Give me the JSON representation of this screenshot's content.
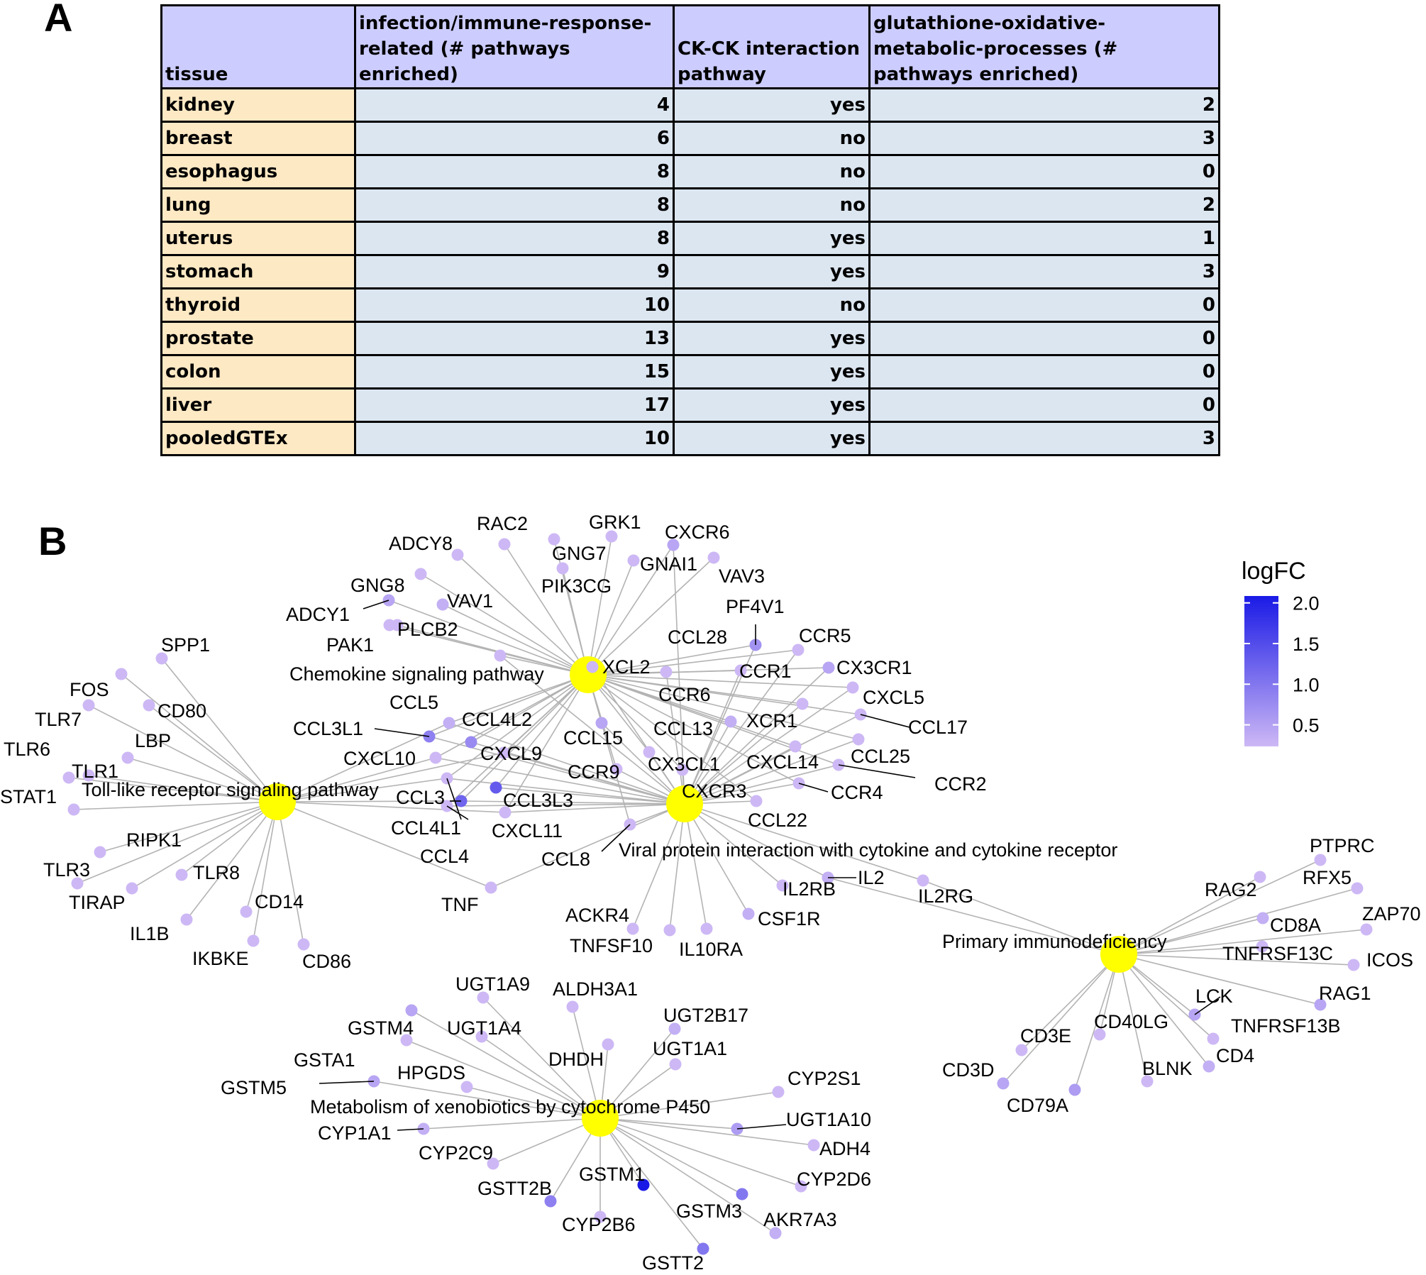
{
  "panel_a": {
    "letter": "A",
    "headers": [
      "tissue",
      "infection/immune-response-related (# pathways enriched)",
      "CK-CK  interaction pathway",
      "glutathione-oxidative-metabolic-processes (# pathways enriched)"
    ],
    "rows": [
      {
        "tissue": "kidney",
        "infection": "4",
        "ckck": "yes",
        "glutathione": "2"
      },
      {
        "tissue": "breast",
        "infection": "6",
        "ckck": "no",
        "glutathione": "3"
      },
      {
        "tissue": "esophagus",
        "infection": "8",
        "ckck": "no",
        "glutathione": "0"
      },
      {
        "tissue": "lung",
        "infection": "8",
        "ckck": "no",
        "glutathione": "2"
      },
      {
        "tissue": "uterus",
        "infection": "8",
        "ckck": "yes",
        "glutathione": "1"
      },
      {
        "tissue": "stomach",
        "infection": "9",
        "ckck": "yes",
        "glutathione": "3"
      },
      {
        "tissue": "thyroid",
        "infection": "10",
        "ckck": "no",
        "glutathione": "0"
      },
      {
        "tissue": "prostate",
        "infection": "13",
        "ckck": "yes",
        "glutathione": "0"
      },
      {
        "tissue": "colon",
        "infection": "15",
        "ckck": "yes",
        "glutathione": "0"
      },
      {
        "tissue": "liver",
        "infection": "17",
        "ckck": "yes",
        "glutathione": "0"
      },
      {
        "tissue": "pooledGTEx",
        "infection": "10",
        "ckck": "yes",
        "glutathione": "3"
      }
    ]
  },
  "panel_b": {
    "letter": "B",
    "legend": {
      "title": "logFC",
      "ticks": [
        "2.0",
        "1.5",
        "1.0",
        "0.5"
      ],
      "color_low": "#cdb8f5",
      "color_high": "#1a1ae6"
    },
    "pathway_color": "#ffff00",
    "pathways": [
      {
        "id": "chemokine",
        "label": "Chemokine signaling pathway"
      },
      {
        "id": "tlr",
        "label": "Toll-like receptor signaling pathway"
      },
      {
        "id": "viral",
        "label": "Viral protein interaction with cytokine and cytokine receptor"
      },
      {
        "id": "pid",
        "label": "Primary immunodeficiency"
      },
      {
        "id": "xeno",
        "label": "Metabolism of xenobiotics by cytochrome P450"
      }
    ],
    "genes": [
      {
        "label": "ADCY8",
        "level": 0.3,
        "pathways": [
          "chemokine"
        ]
      },
      {
        "label": "RAC2",
        "level": 0.3,
        "pathways": [
          "chemokine"
        ]
      },
      {
        "label": "GRK1",
        "level": 0.3,
        "pathways": [
          "chemokine"
        ]
      },
      {
        "label": "CXCR6",
        "level": 0.5,
        "pathways": [
          "chemokine",
          "viral"
        ]
      },
      {
        "label": "GNG7",
        "level": 0.3,
        "pathways": [
          "chemokine"
        ]
      },
      {
        "label": "GNAI1",
        "level": 0.3,
        "pathways": [
          "chemokine"
        ]
      },
      {
        "label": "VAV3",
        "level": 0.3,
        "pathways": [
          "chemokine"
        ]
      },
      {
        "label": "GNG8",
        "level": 0.3,
        "pathways": [
          "chemokine"
        ]
      },
      {
        "label": "PIK3CG",
        "level": 0.3,
        "pathways": [
          "chemokine"
        ]
      },
      {
        "label": "VAV1",
        "level": 0.4,
        "pathways": [
          "chemokine"
        ]
      },
      {
        "label": "ADCY1",
        "level": 0.5,
        "pathways": [
          "chemokine"
        ]
      },
      {
        "label": "PLCB2",
        "level": 0.3,
        "pathways": [
          "chemokine"
        ]
      },
      {
        "label": "PAK1",
        "level": 0.3,
        "pathways": [
          "chemokine"
        ]
      },
      {
        "label": "PF4V1",
        "level": 0.7,
        "pathways": [
          "chemokine",
          "viral"
        ]
      },
      {
        "label": "CCL28",
        "level": 0.3,
        "pathways": [
          "chemokine",
          "viral"
        ]
      },
      {
        "label": "CCR5",
        "level": 0.3,
        "pathways": [
          "chemokine",
          "viral"
        ]
      },
      {
        "label": "XCL2",
        "level": 0.3,
        "pathways": [
          "chemokine",
          "viral"
        ]
      },
      {
        "label": "CCR1",
        "level": 0.3,
        "pathways": [
          "chemokine",
          "viral"
        ]
      },
      {
        "label": "CX3CR1",
        "level": 0.5,
        "pathways": [
          "chemokine",
          "viral"
        ]
      },
      {
        "label": "CCR6",
        "level": 0.3,
        "pathways": [
          "chemokine",
          "viral"
        ]
      },
      {
        "label": "CXCL5",
        "level": 0.3,
        "pathways": [
          "chemokine",
          "viral"
        ]
      },
      {
        "label": "CCL17",
        "level": 0.3,
        "pathways": [
          "chemokine",
          "viral"
        ]
      },
      {
        "label": "XCR1",
        "level": 0.4,
        "pathways": [
          "chemokine",
          "viral"
        ]
      },
      {
        "label": "CCL13",
        "level": 0.3,
        "pathways": [
          "chemokine",
          "viral"
        ]
      },
      {
        "label": "CCL15",
        "level": 0.5,
        "pathways": [
          "chemokine",
          "viral"
        ]
      },
      {
        "label": "CCL5",
        "level": 0.4,
        "pathways": [
          "chemokine",
          "viral",
          "tlr"
        ]
      },
      {
        "label": "CCL4L2",
        "level": 0.8,
        "pathways": [
          "chemokine",
          "viral"
        ]
      },
      {
        "label": "CCL3L1",
        "level": 0.9,
        "pathways": [
          "chemokine",
          "viral"
        ]
      },
      {
        "label": "CXCL9",
        "level": 0.3,
        "pathways": [
          "chemokine",
          "viral",
          "tlr"
        ]
      },
      {
        "label": "CXCL10",
        "level": 0.3,
        "pathways": [
          "chemokine",
          "viral",
          "tlr"
        ]
      },
      {
        "label": "CCL25",
        "level": 0.3,
        "pathways": [
          "chemokine",
          "viral"
        ]
      },
      {
        "label": "CXCL14",
        "level": 0.3,
        "pathways": [
          "chemokine",
          "viral"
        ]
      },
      {
        "label": "CCR2",
        "level": 0.3,
        "pathways": [
          "chemokine",
          "viral"
        ]
      },
      {
        "label": "CX3CL1",
        "level": 0.3,
        "pathways": [
          "chemokine",
          "viral"
        ]
      },
      {
        "label": "CCR9",
        "level": 0.3,
        "pathways": [
          "chemokine",
          "viral"
        ]
      },
      {
        "label": "CCR4",
        "level": 0.3,
        "pathways": [
          "chemokine",
          "viral"
        ]
      },
      {
        "label": "CXCR3",
        "level": 0.3,
        "pathways": [
          "chemokine",
          "viral"
        ]
      },
      {
        "label": "CCL3",
        "level": 1.2,
        "pathways": [
          "chemokine",
          "viral",
          "tlr"
        ]
      },
      {
        "label": "CCL3L3",
        "level": 1.3,
        "pathways": [
          "chemokine",
          "viral"
        ]
      },
      {
        "label": "CCL22",
        "level": 0.3,
        "pathways": [
          "chemokine",
          "viral"
        ]
      },
      {
        "label": "CCL4L1",
        "level": 0.3,
        "pathways": [
          "chemokine",
          "viral"
        ]
      },
      {
        "label": "CXCL11",
        "level": 0.3,
        "pathways": [
          "chemokine",
          "viral",
          "tlr"
        ]
      },
      {
        "label": "CCL4",
        "level": 0.3,
        "pathways": [
          "chemokine",
          "viral",
          "tlr"
        ]
      },
      {
        "label": "CCL8",
        "level": 0.3,
        "pathways": [
          "chemokine",
          "viral"
        ]
      },
      {
        "label": "TNF",
        "level": 0.3,
        "pathways": [
          "viral",
          "tlr"
        ]
      },
      {
        "label": "SPP1",
        "level": 0.3,
        "pathways": [
          "tlr"
        ]
      },
      {
        "label": "FOS",
        "level": 0.3,
        "pathways": [
          "tlr"
        ]
      },
      {
        "label": "CD80",
        "level": 0.3,
        "pathways": [
          "tlr"
        ]
      },
      {
        "label": "TLR7",
        "level": 0.3,
        "pathways": [
          "tlr"
        ]
      },
      {
        "label": "LBP",
        "level": 0.3,
        "pathways": [
          "tlr"
        ]
      },
      {
        "label": "TLR6",
        "level": 0.3,
        "pathways": [
          "tlr"
        ]
      },
      {
        "label": "TLR1",
        "level": 0.3,
        "pathways": [
          "tlr"
        ]
      },
      {
        "label": "STAT1",
        "level": 0.3,
        "pathways": [
          "tlr"
        ]
      },
      {
        "label": "RIPK1",
        "level": 0.3,
        "pathways": [
          "tlr"
        ]
      },
      {
        "label": "TLR3",
        "level": 0.3,
        "pathways": [
          "tlr"
        ]
      },
      {
        "label": "TLR8",
        "level": 0.3,
        "pathways": [
          "tlr"
        ]
      },
      {
        "label": "TIRAP",
        "level": 0.3,
        "pathways": [
          "tlr"
        ]
      },
      {
        "label": "CD14",
        "level": 0.3,
        "pathways": [
          "tlr"
        ]
      },
      {
        "label": "IL1B",
        "level": 0.3,
        "pathways": [
          "tlr"
        ]
      },
      {
        "label": "IKBKE",
        "level": 0.3,
        "pathways": [
          "tlr"
        ]
      },
      {
        "label": "CD86",
        "level": 0.3,
        "pathways": [
          "tlr"
        ]
      },
      {
        "label": "IL2",
        "level": 0.4,
        "pathways": [
          "viral",
          "pid"
        ]
      },
      {
        "label": "IL2RB",
        "level": 0.3,
        "pathways": [
          "viral"
        ]
      },
      {
        "label": "IL2RG",
        "level": 0.3,
        "pathways": [
          "viral",
          "pid"
        ]
      },
      {
        "label": "ACKR4",
        "level": 0.3,
        "pathways": [
          "viral"
        ]
      },
      {
        "label": "CSF1R",
        "level": 0.4,
        "pathways": [
          "viral"
        ]
      },
      {
        "label": "TNFSF10",
        "level": 0.3,
        "pathways": [
          "viral"
        ]
      },
      {
        "label": "IL10RA",
        "level": 0.3,
        "pathways": [
          "viral"
        ]
      },
      {
        "label": "PTPRC",
        "level": 0.3,
        "pathways": [
          "pid"
        ]
      },
      {
        "label": "RAG2",
        "level": 0.3,
        "pathways": [
          "pid"
        ]
      },
      {
        "label": "RFX5",
        "level": 0.3,
        "pathways": [
          "pid"
        ]
      },
      {
        "label": "CD8A",
        "level": 0.4,
        "pathways": [
          "pid"
        ]
      },
      {
        "label": "ZAP70",
        "level": 0.3,
        "pathways": [
          "pid"
        ]
      },
      {
        "label": "TNFRSF13C",
        "level": 0.3,
        "pathways": [
          "pid"
        ]
      },
      {
        "label": "ICOS",
        "level": 0.3,
        "pathways": [
          "pid"
        ]
      },
      {
        "label": "LCK",
        "level": 0.5,
        "pathways": [
          "pid"
        ]
      },
      {
        "label": "RAG1",
        "level": 0.5,
        "pathways": [
          "pid"
        ]
      },
      {
        "label": "CD3E",
        "level": 0.3,
        "pathways": [
          "pid"
        ]
      },
      {
        "label": "CD40LG",
        "level": 0.3,
        "pathways": [
          "pid"
        ]
      },
      {
        "label": "TNFRSF13B",
        "level": 0.3,
        "pathways": [
          "pid"
        ]
      },
      {
        "label": "CD4",
        "level": 0.4,
        "pathways": [
          "pid"
        ]
      },
      {
        "label": "CD3D",
        "level": 0.5,
        "pathways": [
          "pid"
        ]
      },
      {
        "label": "BLNK",
        "level": 0.3,
        "pathways": [
          "pid"
        ]
      },
      {
        "label": "CD79A",
        "level": 0.6,
        "pathways": [
          "pid"
        ]
      },
      {
        "label": "UGT1A9",
        "level": 0.3,
        "pathways": [
          "xeno"
        ]
      },
      {
        "label": "ALDH3A1",
        "level": 0.3,
        "pathways": [
          "xeno"
        ]
      },
      {
        "label": "GSTM4",
        "level": 0.5,
        "pathways": [
          "xeno"
        ]
      },
      {
        "label": "UGT1A4",
        "level": 0.3,
        "pathways": [
          "xeno"
        ]
      },
      {
        "label": "UGT2B17",
        "level": 0.4,
        "pathways": [
          "xeno"
        ]
      },
      {
        "label": "GSTA1",
        "level": 0.3,
        "pathways": [
          "xeno"
        ]
      },
      {
        "label": "DHDH",
        "level": 0.3,
        "pathways": [
          "xeno"
        ]
      },
      {
        "label": "UGT1A1",
        "level": 0.3,
        "pathways": [
          "xeno"
        ]
      },
      {
        "label": "HPGDS",
        "level": 0.3,
        "pathways": [
          "xeno"
        ]
      },
      {
        "label": "GSTM5",
        "level": 0.5,
        "pathways": [
          "xeno"
        ]
      },
      {
        "label": "CYP2S1",
        "level": 0.3,
        "pathways": [
          "xeno"
        ]
      },
      {
        "label": "UGT1A10",
        "level": 0.6,
        "pathways": [
          "xeno"
        ]
      },
      {
        "label": "CYP1A1",
        "level": 0.4,
        "pathways": [
          "xeno"
        ]
      },
      {
        "label": "CYP2C9",
        "level": 0.3,
        "pathways": [
          "xeno"
        ]
      },
      {
        "label": "ADH4",
        "level": 0.3,
        "pathways": [
          "xeno"
        ]
      },
      {
        "label": "GSTM1",
        "level": 2.0,
        "pathways": [
          "xeno"
        ]
      },
      {
        "label": "GSTT2B",
        "level": 0.9,
        "pathways": [
          "xeno"
        ]
      },
      {
        "label": "CYP2D6",
        "level": 0.3,
        "pathways": [
          "xeno"
        ]
      },
      {
        "label": "CYP2B6",
        "level": 0.3,
        "pathways": [
          "xeno"
        ]
      },
      {
        "label": "GSTM3",
        "level": 1.0,
        "pathways": [
          "xeno"
        ]
      },
      {
        "label": "AKR7A3",
        "level": 0.4,
        "pathways": [
          "xeno"
        ]
      },
      {
        "label": "GSTT2",
        "level": 1.0,
        "pathways": [
          "xeno"
        ]
      }
    ]
  }
}
